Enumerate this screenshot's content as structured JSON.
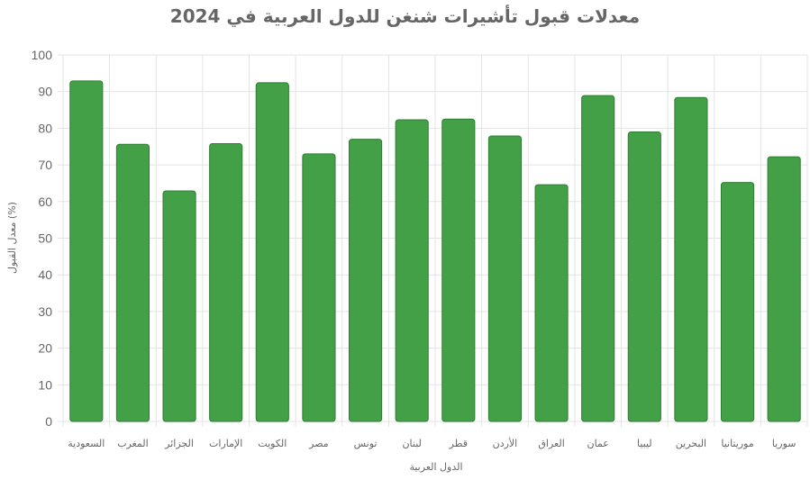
{
  "chart_data": {
    "type": "bar",
    "title": "معدلات قبول تأشيرات شنغن للدول العربية في 2024",
    "xlabel": "الدول العربية",
    "ylabel": "معدل القبول (%)",
    "ylim": [
      0,
      100
    ],
    "yticks": [
      0,
      10,
      20,
      30,
      40,
      50,
      60,
      70,
      80,
      90,
      100
    ],
    "grid": true,
    "legend": "none",
    "bar_color": "#43a047",
    "bar_border_color": "#2e7d32",
    "categories": [
      "السعودية",
      "المغرب",
      "الجزائر",
      "الإمارات",
      "الكويت",
      "مصر",
      "تونس",
      "لبنان",
      "قطر",
      "الأردن",
      "العراق",
      "عمان",
      "ليبيا",
      "البحرين",
      "موريتانيا",
      "سوريا"
    ],
    "values": [
      92.9,
      75.6,
      62.9,
      75.8,
      92.4,
      73.0,
      77.0,
      82.3,
      82.5,
      77.9,
      64.6,
      88.9,
      79.0,
      88.4,
      65.2,
      72.2
    ]
  }
}
